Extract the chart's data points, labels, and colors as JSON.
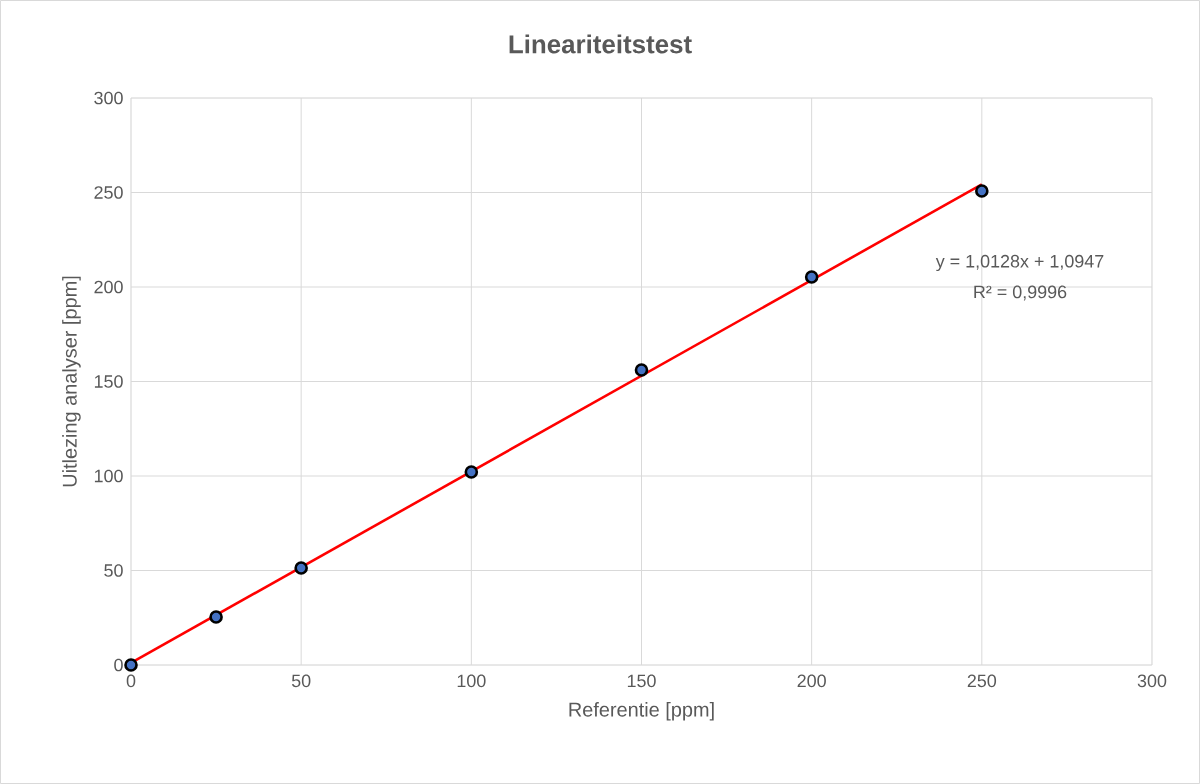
{
  "chart_data": {
    "type": "scatter",
    "title": "Lineariteitstest",
    "xlabel": "Referentie [ppm]",
    "ylabel": "Uitlezing analyser [ppm]",
    "x": [
      0,
      25,
      50,
      100,
      150,
      200,
      250
    ],
    "series": [
      {
        "color": "#4472c4",
        "marker": "circle",
        "values": [
          0,
          25.4,
          51.3,
          102.1,
          156.1,
          205.3,
          250.8
        ]
      },
      {
        "type": "line",
        "color": "#ff0000",
        "line_style": "solid",
        "marker": "none",
        "x": [
          0,
          250
        ],
        "values": [
          1.1,
          254.3
        ]
      }
    ],
    "annotations": [
      "y = 1,0128x + 1,0947",
      "R² = 0,9996"
    ],
    "xlim": [
      0,
      300
    ],
    "ylim": [
      0,
      300
    ],
    "xticks": [
      0,
      50,
      100,
      150,
      200,
      250,
      300
    ],
    "yticks": [
      0,
      50,
      100,
      150,
      200,
      250,
      300
    ],
    "grid": true
  }
}
